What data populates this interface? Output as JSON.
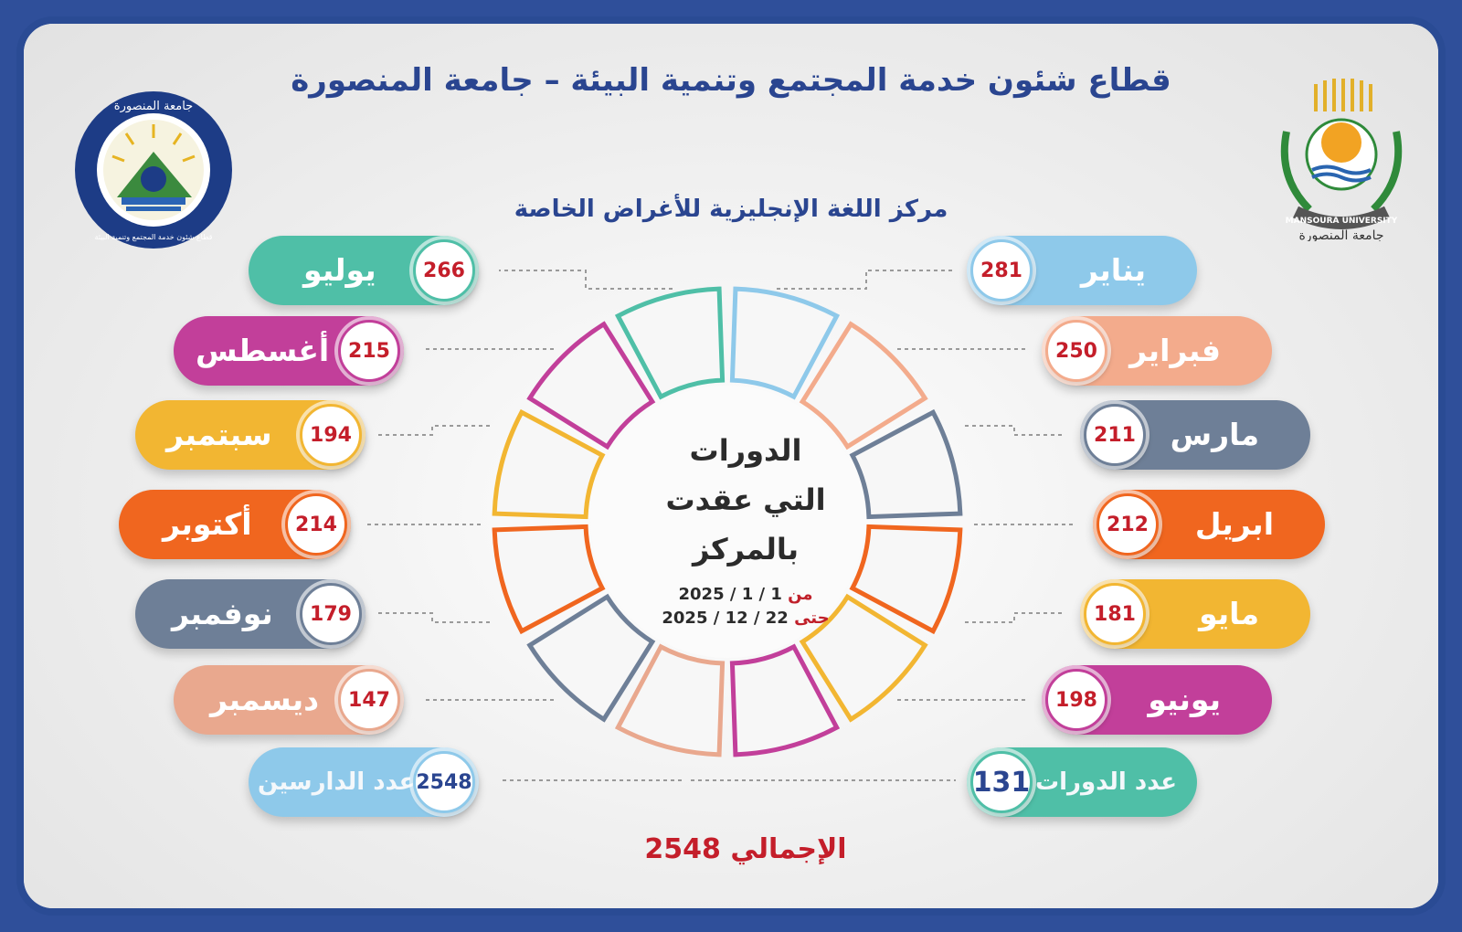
{
  "header": {
    "title": "قطاع شئون خدمة المجتمع وتنمية البيئة – جامعة المنصورة",
    "subtitle": "مركز اللغة الإنجليزية للأغراض الخاصة"
  },
  "logos": {
    "left": {
      "icon": "community-service-sector-logo",
      "text_top": "جامعة المنصورة",
      "text_bottom": "قطاع شئون خدمة المجتمع وتنمية البيئة"
    },
    "right": {
      "icon": "mansoura-university-logo",
      "text_en": "MANSOURA UNIVERSITY",
      "text_ar": "جامعة المنصورة"
    }
  },
  "center": {
    "line1": "الدورات",
    "line2": "التي عقدت",
    "line3": "بالمركز",
    "from_label": "من",
    "from_date": "2025 / 1 / 1",
    "to_label": "حتى",
    "to_date": "2025 / 12 / 22"
  },
  "months": [
    {
      "name": "يناير",
      "count": "281",
      "color": "#8ec9ea"
    },
    {
      "name": "فبراير",
      "count": "250",
      "color": "#f3ab8c"
    },
    {
      "name": "مارس",
      "count": "211",
      "color": "#6e7f97"
    },
    {
      "name": "ابريل",
      "count": "212",
      "color": "#f0661f"
    },
    {
      "name": "مايو",
      "count": "181",
      "color": "#f2b632"
    },
    {
      "name": "يونيو",
      "count": "198",
      "color": "#c23f9a"
    },
    {
      "name": "يوليو",
      "count": "266",
      "color": "#4fbfa7"
    },
    {
      "name": "أغسطس",
      "count": "215",
      "color": "#c23f9a"
    },
    {
      "name": "سبتمبر",
      "count": "194",
      "color": "#f2b632"
    },
    {
      "name": "أكتوبر",
      "count": "214",
      "color": "#f0661f"
    },
    {
      "name": "نوفمبر",
      "count": "179",
      "color": "#6e7f97"
    },
    {
      "name": "ديسمبر",
      "count": "147",
      "color": "#e9a88e"
    }
  ],
  "summary": {
    "courses_label": "عدد الدورات",
    "courses_value": "131",
    "students_label": "عدد الدارسين",
    "students_value": "2548",
    "total_label": "الإجمالي",
    "total_value": "2548",
    "courses_color": "#4fbfa7",
    "students_color": "#8ec9ea"
  }
}
